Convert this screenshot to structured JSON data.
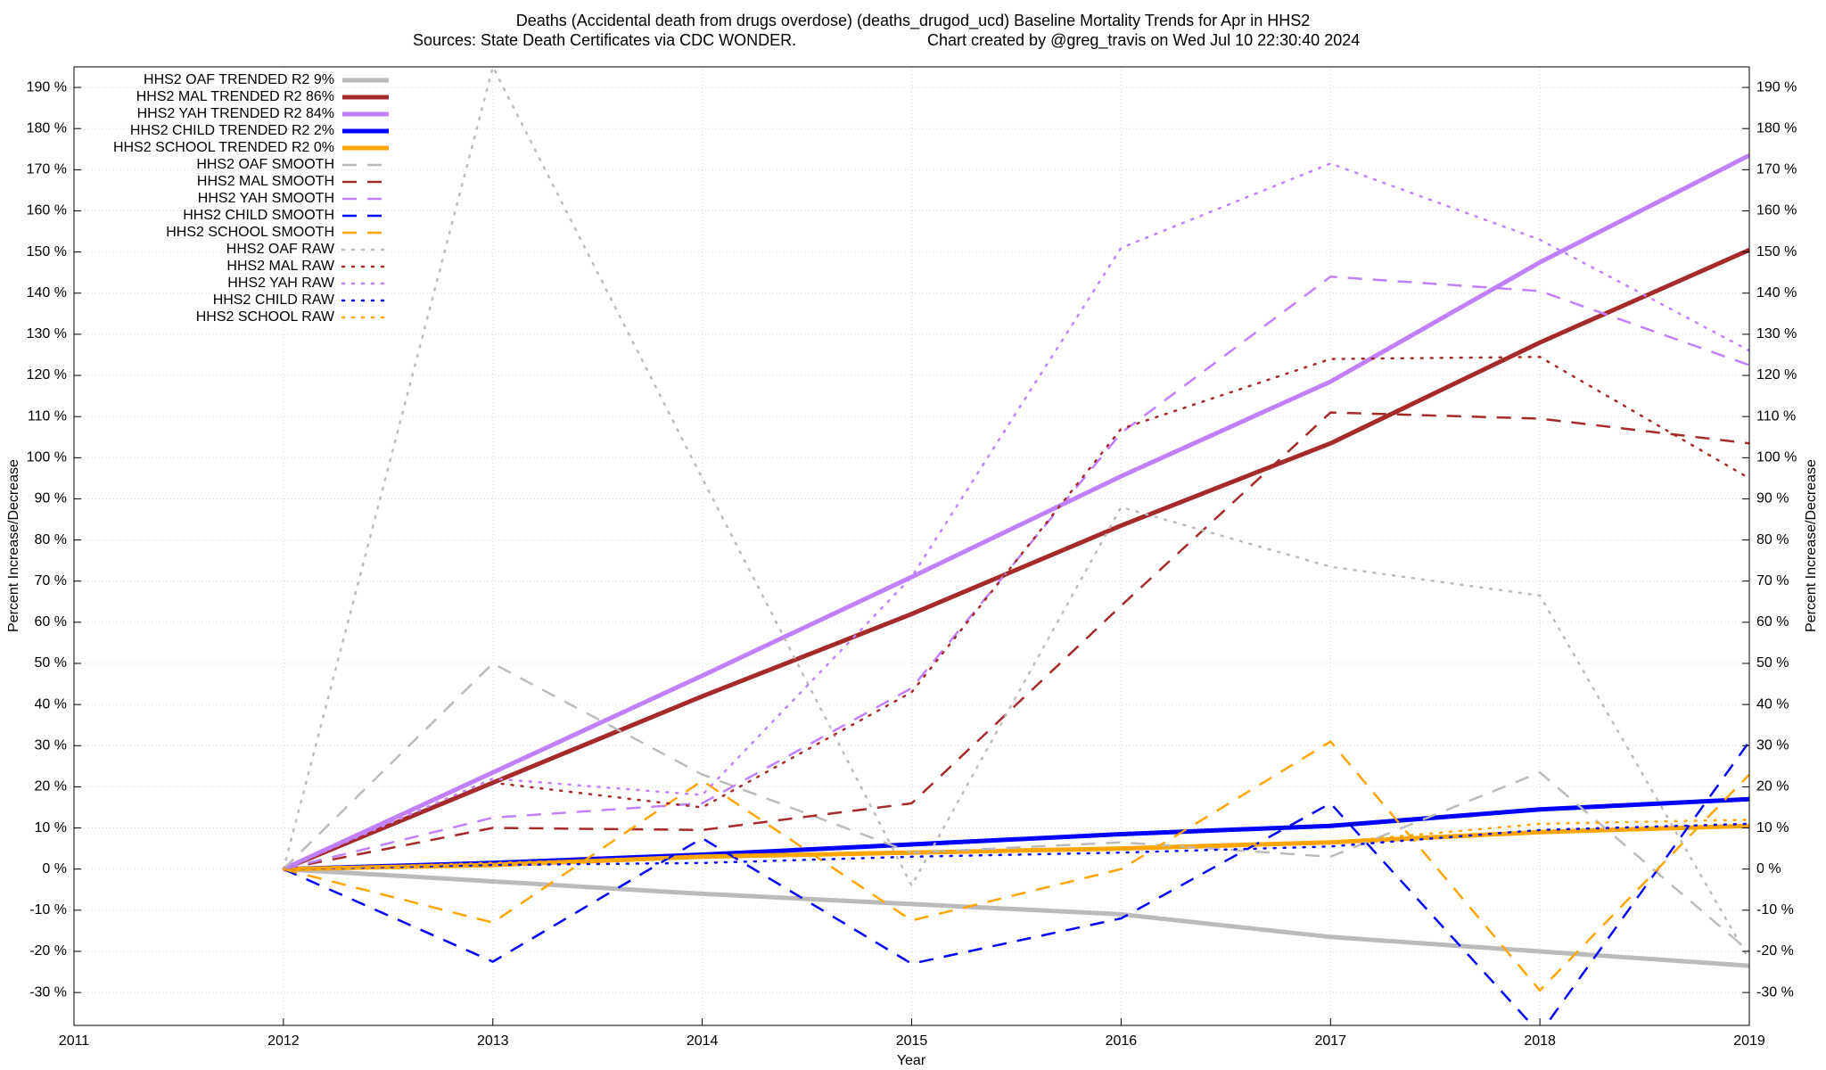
{
  "chart_data": {
    "type": "line",
    "title": "Deaths (Accidental death from drugs overdose) (deaths_drugod_ucd)  Baseline Mortality Trends for Apr in HHS2",
    "subtitle": "Sources: State Death Certificates via CDC WONDER.",
    "credit": "Chart created by @greg_travis on Wed Jul 10 22:30:40 2024",
    "x_label": "Year",
    "y_label": "Percent Increase/Decrease",
    "x": [
      2012,
      2013,
      2014,
      2015,
      2016,
      2017,
      2018,
      2019
    ],
    "xlim": [
      2011,
      2019
    ],
    "xticks": [
      2011,
      2012,
      2013,
      2014,
      2015,
      2016,
      2017,
      2018,
      2019
    ],
    "ylim": [
      -38,
      195
    ],
    "yticks": [
      {
        "value": -30,
        "label": "-30 %"
      },
      {
        "value": -20,
        "label": "-20 %"
      },
      {
        "value": -10,
        "label": "-10 %"
      },
      {
        "value": 0,
        "label": "0 %"
      },
      {
        "value": 10,
        "label": "10 %"
      },
      {
        "value": 20,
        "label": "20 %"
      },
      {
        "value": 30,
        "label": "30 %"
      },
      {
        "value": 40,
        "label": "40 %"
      },
      {
        "value": 50,
        "label": "50 %"
      },
      {
        "value": 60,
        "label": "60 %"
      },
      {
        "value": 70,
        "label": "70 %"
      },
      {
        "value": 80,
        "label": "80 %"
      },
      {
        "value": 90,
        "label": "90 %"
      },
      {
        "value": 100,
        "label": "100 %"
      },
      {
        "value": 110,
        "label": "110 %"
      },
      {
        "value": 120,
        "label": "120 %"
      },
      {
        "value": 130,
        "label": "130 %"
      },
      {
        "value": 140,
        "label": "140 %"
      },
      {
        "value": 150,
        "label": "150 %"
      },
      {
        "value": 160,
        "label": "160 %"
      },
      {
        "value": 170,
        "label": "170 %"
      },
      {
        "value": 180,
        "label": "180 %"
      },
      {
        "value": 190,
        "label": "190 %"
      }
    ],
    "grid": true,
    "legend": "top-left",
    "series": [
      {
        "name": "HHS2 OAF TRENDED R2  9%",
        "color": "#bbbbbb",
        "style": "solid",
        "values": [
          0,
          -3,
          -6,
          -8.5,
          -11,
          -16.5,
          -20,
          -23.5
        ]
      },
      {
        "name": "HHS2 MAL TRENDED R2  86%",
        "color": "#a52a2a",
        "style": "solid",
        "values": [
          0,
          21,
          42,
          62,
          83.5,
          103.5,
          128,
          150.5
        ]
      },
      {
        "name": "HHS2 YAH TRENDED R2  84%",
        "color": "#c080ff",
        "style": "solid",
        "values": [
          0,
          23.5,
          47,
          71,
          95.5,
          118.5,
          147.5,
          173.5
        ]
      },
      {
        "name": "HHS2 CHILD TRENDED R2  2%",
        "color": "#0000ff",
        "style": "solid",
        "values": [
          0,
          1.5,
          3.5,
          6,
          8.5,
          10.5,
          14.5,
          17
        ]
      },
      {
        "name": "HHS2 SCHOOL TRENDED R2  0%",
        "color": "#ffa500",
        "style": "solid",
        "values": [
          0,
          1,
          3,
          4,
          5,
          6.5,
          9,
          10.5
        ]
      },
      {
        "name": "HHS2 OAF SMOOTH",
        "color": "#bbbbbb",
        "style": "dashed",
        "values": [
          0,
          50,
          23,
          4,
          6.5,
          3,
          23.5,
          -20
        ]
      },
      {
        "name": "HHS2 MAL SMOOTH",
        "color": "#a52a2a",
        "style": "dashed",
        "values": [
          0,
          10,
          9.5,
          16,
          64,
          111,
          109.5,
          103.5
        ]
      },
      {
        "name": "HHS2 YAH SMOOTH",
        "color": "#c080ff",
        "style": "dashed",
        "values": [
          0,
          12.5,
          16,
          44,
          106,
          144,
          140.5,
          122.5
        ]
      },
      {
        "name": "HHS2 CHILD SMOOTH",
        "color": "#0000ff",
        "style": "dashed",
        "values": [
          0,
          -22.5,
          7.5,
          -23,
          -12,
          16,
          -40,
          31
        ]
      },
      {
        "name": "HHS2 SCHOOL SMOOTH",
        "color": "#ffa500",
        "style": "dashed",
        "values": [
          0,
          -13,
          21.5,
          -12.5,
          0,
          31,
          -29.5,
          23
        ]
      },
      {
        "name": "HHS2 OAF RAW",
        "color": "#bbbbbb",
        "style": "dotted",
        "values": [
          0,
          195,
          95,
          -4,
          88,
          73.5,
          66.5,
          -22
        ]
      },
      {
        "name": "HHS2 MAL RAW",
        "color": "#a52a2a",
        "style": "dotted",
        "values": [
          0,
          21,
          15,
          43,
          107,
          124,
          124.5,
          95
        ]
      },
      {
        "name": "HHS2 YAH RAW",
        "color": "#c080ff",
        "style": "dotted",
        "values": [
          0,
          22,
          18,
          71,
          151,
          171.5,
          153,
          126
        ]
      },
      {
        "name": "HHS2 CHILD RAW",
        "color": "#0000ff",
        "style": "dotted",
        "values": [
          0,
          1,
          1.5,
          3,
          4,
          5.5,
          9.5,
          11
        ]
      },
      {
        "name": "HHS2 SCHOOL RAW",
        "color": "#ffa500",
        "style": "dotted",
        "values": [
          0,
          1.5,
          3,
          4,
          5,
          6.5,
          11,
          12
        ]
      }
    ]
  }
}
